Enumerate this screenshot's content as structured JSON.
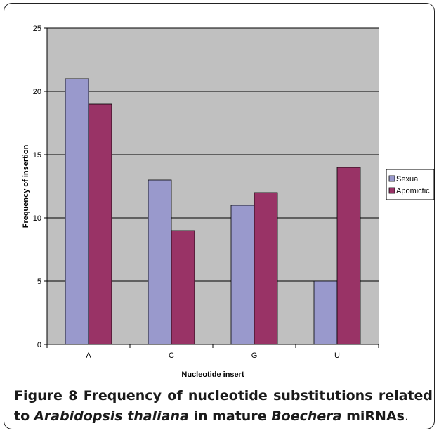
{
  "chart_data": {
    "type": "bar",
    "categories": [
      "A",
      "C",
      "G",
      "U"
    ],
    "series": [
      {
        "name": "Sexual",
        "values": [
          21,
          13,
          11,
          5
        ],
        "color": "#9999cc"
      },
      {
        "name": "Apomictic",
        "values": [
          19,
          9,
          12,
          14
        ],
        "color": "#993366"
      }
    ],
    "xlabel": "Nucleotide insert",
    "ylabel": "Frequency of insertion",
    "ylim": [
      0,
      25
    ],
    "yticks": [
      "0",
      "5",
      "10",
      "15",
      "20",
      "25"
    ],
    "grid": true,
    "legend_position": "right",
    "plot_background": "#c0c0c0"
  },
  "caption": {
    "label": "Figure 8",
    "text1": " Frequency of nucleotide substitutions related to",
    "species1": "Arabidopsis thaliana",
    "text2": " in mature ",
    "genus2": "Boechera",
    "text3": " miRNAs",
    "period": "."
  }
}
